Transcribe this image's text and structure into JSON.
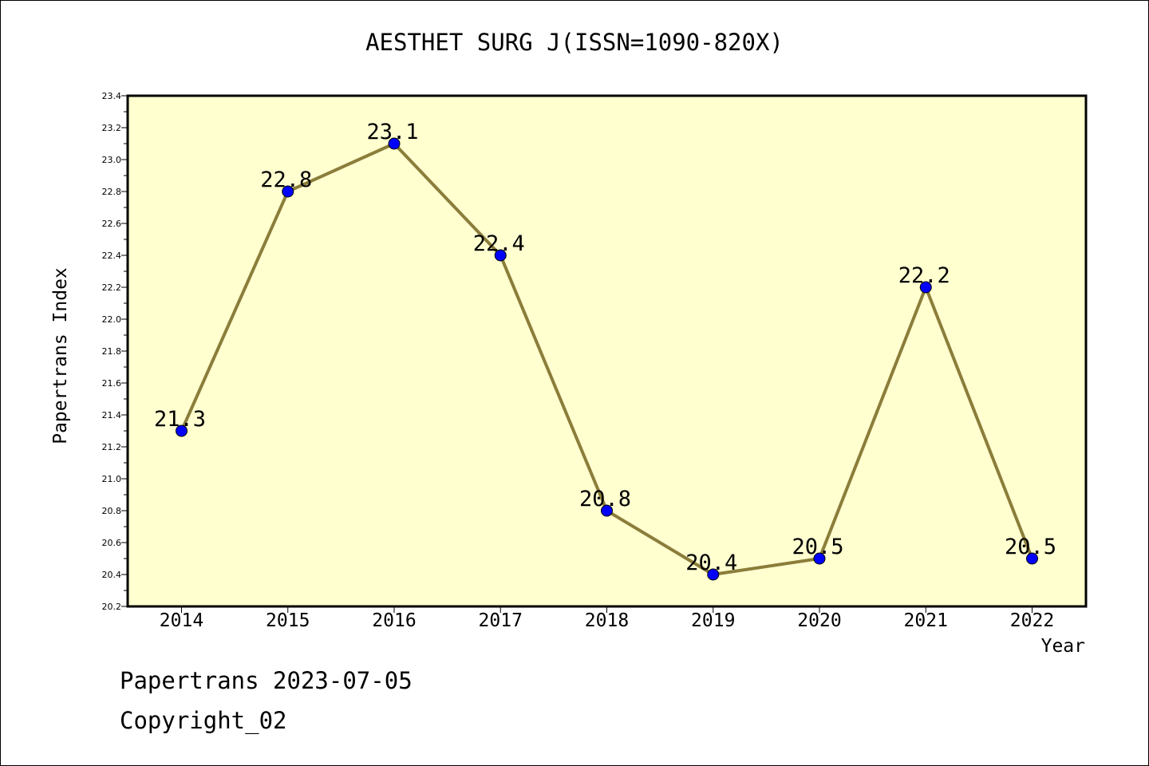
{
  "chart_data": {
    "type": "line",
    "title": "AESTHET SURG J(ISSN=1090-820X)",
    "xlabel": "Year",
    "ylabel": "Papertrans Index",
    "categories": [
      "2014",
      "2015",
      "2016",
      "2017",
      "2018",
      "2019",
      "2020",
      "2021",
      "2022"
    ],
    "series": [
      {
        "values": [
          21.3,
          22.8,
          23.1,
          22.4,
          20.8,
          20.4,
          20.5,
          22.2,
          20.5
        ],
        "labels": [
          "21.3",
          "22.8",
          "23.1",
          "22.4",
          "20.8",
          "20.4",
          "20.5",
          "22.2",
          "20.5"
        ]
      }
    ],
    "ylim": [
      20.2,
      23.4
    ],
    "yticks": [
      "20.2",
      "20.4",
      "20.6",
      "20.8",
      "21.0",
      "21.2",
      "21.4",
      "21.6",
      "21.8",
      "22.0",
      "22.2",
      "22.4",
      "22.6",
      "22.8",
      "23.0",
      "23.2",
      "23.4"
    ],
    "grid": false,
    "colors": {
      "plot_background": "#ffffd0",
      "line": "#8b7d3a",
      "marker": "#0000ff"
    }
  },
  "footer": {
    "line1": "Papertrans 2023-07-05",
    "line2": "Copyright_02"
  }
}
